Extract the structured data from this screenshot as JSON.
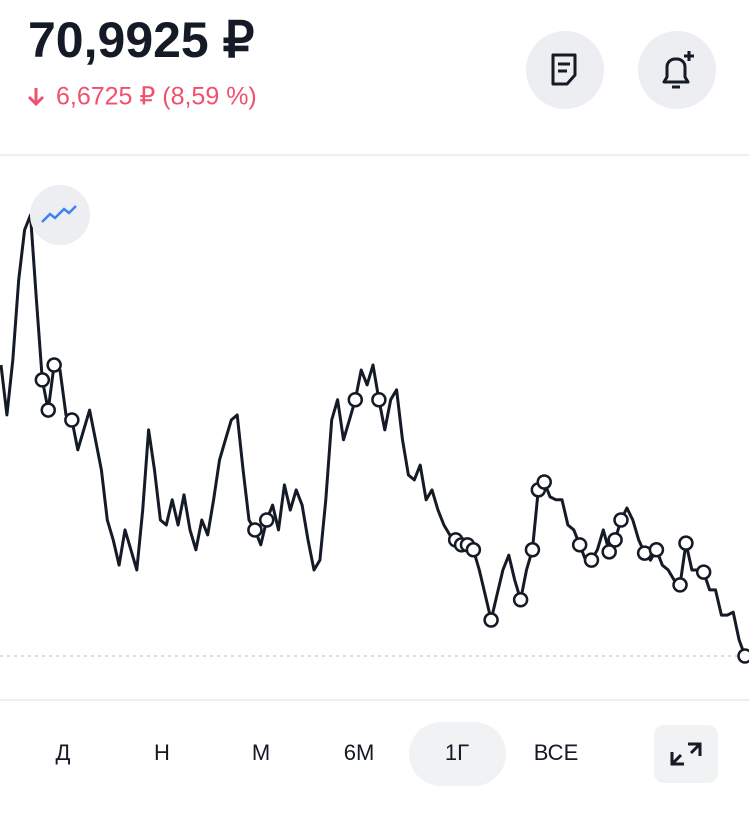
{
  "header": {
    "price": "70,9925 ₽",
    "change": "6,6725 ₽ (8,59 %)"
  },
  "chart_data": {
    "type": "line",
    "color": "#141a26",
    "values": [
      78.03,
      76.82,
      78.15,
      80.09,
      81.3,
      81.66,
      79.61,
      77.67,
      76.94,
      78.03,
      77.91,
      76.82,
      76.7,
      75.98,
      76.46,
      76.94,
      76.22,
      75.49,
      74.28,
      73.8,
      73.19,
      74.04,
      73.56,
      73.07,
      74.52,
      76.46,
      75.49,
      74.28,
      74.16,
      74.77,
      74.16,
      74.89,
      74.04,
      73.56,
      74.28,
      73.92,
      74.77,
      75.73,
      76.22,
      76.7,
      76.82,
      75.49,
      74.28,
      74.04,
      73.68,
      74.28,
      74.64,
      74.04,
      75.13,
      74.52,
      75.01,
      74.64,
      73.8,
      73.07,
      73.31,
      74.77,
      76.7,
      77.19,
      76.22,
      76.7,
      77.19,
      77.91,
      77.55,
      78.03,
      77.19,
      76.46,
      77.19,
      77.43,
      76.22,
      75.37,
      75.25,
      75.61,
      74.77,
      75.01,
      74.52,
      74.16,
      73.92,
      73.8,
      73.68,
      73.68,
      73.56,
      73.07,
      72.47,
      71.86,
      72.47,
      73.07,
      73.43,
      72.83,
      72.35,
      73.07,
      73.56,
      75.01,
      75.2,
      74.84,
      74.77,
      74.77,
      74.16,
      74.04,
      73.68,
      73.31,
      73.31,
      73.56,
      74.04,
      73.51,
      73.8,
      74.28,
      74.57,
      74.28,
      73.8,
      73.48,
      73.31,
      73.56,
      73.19,
      73.07,
      72.83,
      72.71,
      73.72,
      73.07,
      73.07,
      73.02,
      72.59,
      72.59,
      71.98,
      71.98,
      72.05,
      71.38,
      70.99
    ]
  },
  "tabs": [
    "Д",
    "Н",
    "М",
    "6М",
    "1Г",
    "ВСЕ"
  ]
}
